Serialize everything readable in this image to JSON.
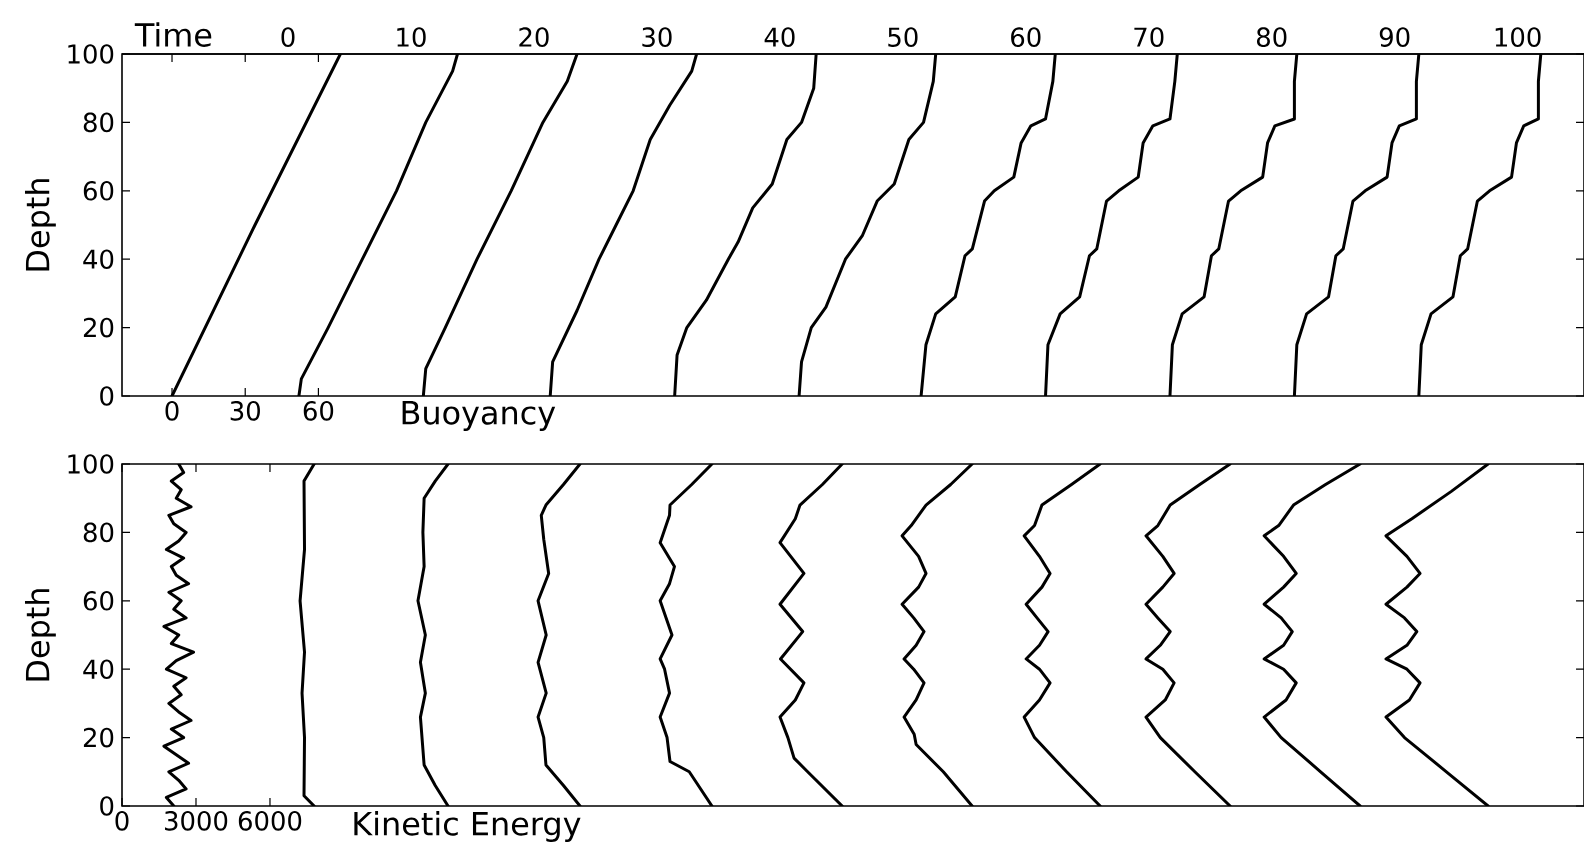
{
  "chart_data": [
    {
      "type": "line",
      "ylabel": "Depth",
      "xlabel": "Buoyancy",
      "x2label": "Time",
      "xlim": [
        -20.5,
        578.7
      ],
      "xticks": [
        0,
        30,
        60
      ],
      "x2lim": [
        -13.5,
        105.4
      ],
      "x2ticks": [
        0,
        10,
        20,
        30,
        40,
        50,
        60,
        70,
        80,
        90,
        100
      ],
      "ylim": [
        0,
        100
      ],
      "yticks": [
        0,
        20,
        40,
        60,
        80,
        100
      ],
      "series": [
        {
          "color": "#000000",
          "x": [
            0,
            34,
            69
          ],
          "values": [
            0,
            50,
            100
          ]
        },
        {
          "color": "#000000",
          "x": [
            52,
            53,
            64,
            78,
            92,
            104,
            115,
            117
          ],
          "values": [
            0,
            5,
            20,
            40,
            60,
            80,
            95,
            100
          ]
        },
        {
          "color": "#000000",
          "x": [
            103,
            104,
            112,
            125,
            139,
            152,
            162,
            166
          ],
          "values": [
            0,
            8,
            20,
            40,
            60,
            80,
            92,
            100
          ]
        },
        {
          "color": "#000000",
          "x": [
            155,
            156,
            166,
            175,
            182,
            189,
            196,
            204,
            213,
            215
          ],
          "values": [
            0,
            10,
            25,
            40,
            50,
            60,
            75,
            85,
            95,
            100
          ]
        },
        {
          "color": "#000000",
          "x": [
            206,
            207,
            211,
            219,
            228,
            232,
            238,
            246,
            252,
            258,
            263,
            264
          ],
          "values": [
            0,
            12,
            20,
            28,
            40,
            45,
            55,
            62,
            75,
            80,
            90,
            100
          ]
        },
        {
          "color": "#000000",
          "x": [
            257,
            258,
            262,
            268,
            276,
            283,
            289,
            296,
            302,
            308,
            312,
            313
          ],
          "values": [
            0,
            10,
            20,
            26,
            40,
            47,
            57,
            62,
            75,
            80,
            92,
            100
          ]
        },
        {
          "color": "#000000",
          "x": [
            307,
            309,
            313,
            321,
            325,
            328,
            333,
            337,
            345,
            348,
            352,
            358,
            361,
            362
          ],
          "values": [
            0,
            15,
            24,
            29,
            41,
            43,
            57,
            60,
            64,
            74,
            79,
            81,
            92,
            100
          ]
        },
        {
          "color": "#000000",
          "x": [
            358,
            359,
            364,
            372,
            376,
            379,
            383,
            388,
            396,
            398,
            402,
            409,
            411,
            412
          ],
          "values": [
            0,
            15,
            24,
            29,
            41,
            43,
            57,
            60,
            64,
            74,
            79,
            81,
            92,
            100
          ]
        },
        {
          "color": "#000000",
          "x": [
            409,
            410,
            414,
            423,
            426,
            429,
            433,
            438,
            447,
            449,
            452,
            460,
            460,
            461
          ],
          "values": [
            0,
            15,
            24,
            29,
            41,
            43,
            57,
            60,
            64,
            74,
            79,
            81,
            92,
            100
          ]
        },
        {
          "color": "#000000",
          "x": [
            460,
            461,
            465,
            474,
            477,
            480,
            484,
            489,
            498,
            500,
            503,
            510,
            510,
            511
          ],
          "values": [
            0,
            15,
            24,
            29,
            41,
            43,
            57,
            60,
            64,
            74,
            79,
            81,
            92,
            100
          ]
        },
        {
          "color": "#000000",
          "x": [
            511,
            512,
            516,
            525,
            528,
            531,
            535,
            540,
            549,
            551,
            554,
            560,
            560,
            561
          ],
          "values": [
            0,
            15,
            24,
            29,
            41,
            43,
            57,
            60,
            64,
            74,
            79,
            81,
            92,
            100
          ]
        }
      ]
    },
    {
      "type": "line",
      "ylabel": "Depth",
      "xlabel": "Kinetic Energy",
      "xlim": [
        0,
        59280
      ],
      "xticks": [
        0,
        3000,
        6000
      ],
      "ylim": [
        0,
        100
      ],
      "yticks": [
        0,
        20,
        40,
        60,
        80,
        100
      ],
      "series": [
        {
          "color": "#000000",
          "x": [
            2100,
            1800,
            2600,
            2300,
            1900,
            2700,
            2200,
            1700,
            2500,
            2000,
            2800,
            2300,
            1900,
            2400,
            2100,
            2600,
            1800,
            2200,
            2900,
            2000,
            2300,
            1700,
            2600,
            2100,
            2400,
            1900,
            2700,
            2200,
            2000,
            2500,
            1800,
            2300,
            2600,
            2100,
            1900,
            2800,
            2200,
            2400,
            2000,
            2500,
            2300
          ],
          "values": [
            0,
            2.5,
            5,
            7.5,
            10,
            12.5,
            15,
            17.5,
            20,
            22.5,
            25,
            27.5,
            30,
            32.5,
            35,
            37.5,
            40,
            42.5,
            45,
            47.5,
            50,
            52.5,
            55,
            57.5,
            60,
            62.5,
            65,
            67.5,
            70,
            72.5,
            75,
            77.5,
            80,
            82.5,
            85,
            87.5,
            90,
            92.5,
            95,
            97.5,
            100
          ]
        },
        {
          "color": "#000000",
          "x": [
            7790,
            7380,
            7400,
            7300,
            7400,
            7220,
            7400,
            7380,
            7790
          ],
          "values": [
            0,
            3,
            20,
            33,
            45,
            60,
            75,
            95,
            100
          ]
        },
        {
          "color": "#000000",
          "x": [
            13220,
            12700,
            12250,
            12100,
            12300,
            12100,
            12300,
            12000,
            12250,
            12200,
            12250,
            12700,
            13220
          ],
          "values": [
            0,
            6,
            12,
            26,
            33,
            42,
            50,
            60,
            70,
            80,
            90,
            95,
            100
          ]
        },
        {
          "color": "#000000",
          "x": [
            18570,
            17900,
            17190,
            17100,
            16870,
            17200,
            16870,
            17200,
            16870,
            17300,
            17100,
            17000,
            17190,
            17900,
            18570
          ],
          "values": [
            0,
            6,
            12,
            20,
            26,
            33,
            42,
            50,
            60,
            68,
            78,
            85,
            88,
            94,
            100
          ]
        },
        {
          "color": "#000000",
          "x": [
            23920,
            23000,
            22220,
            22100,
            21820,
            22200,
            22000,
            21820,
            22300,
            21820,
            22200,
            22400,
            21820,
            22200,
            22220,
            23100,
            23920
          ],
          "values": [
            0,
            10,
            13,
            20,
            26,
            33,
            40,
            43,
            50,
            60,
            65,
            70,
            77,
            85,
            88,
            94,
            100
          ]
        },
        {
          "color": "#000000",
          "x": [
            29200,
            27800,
            27250,
            27000,
            26680,
            27300,
            27650,
            26700,
            27600,
            26680,
            27650,
            26680,
            27300,
            27490,
            28400,
            29200
          ],
          "values": [
            0,
            10,
            14,
            20,
            26,
            31,
            36,
            43,
            51,
            59,
            68,
            77,
            84,
            88,
            94,
            100
          ]
        },
        {
          "color": "#000000",
          "x": [
            34470,
            33300,
            32200,
            32120,
            31710,
            32200,
            32520,
            32100,
            31710,
            32200,
            32520,
            32100,
            31630,
            32300,
            32600,
            32300,
            31630,
            32000,
            32600,
            33600,
            34470
          ],
          "values": [
            0,
            10,
            18,
            21,
            26,
            31,
            36,
            40,
            43,
            47,
            51,
            55,
            59,
            64,
            68,
            73,
            79,
            82,
            88,
            94,
            100
          ]
        },
        {
          "color": "#000000",
          "x": [
            39660,
            38300,
            37000,
            36580,
            37200,
            37630,
            37200,
            36660,
            37200,
            37550,
            37100,
            36660,
            37300,
            37630,
            37200,
            36580,
            37000,
            37300,
            38500,
            39660
          ],
          "values": [
            0,
            10,
            20,
            26,
            31,
            36,
            40,
            43,
            47,
            51,
            55,
            59,
            64,
            68,
            73,
            79,
            82,
            88,
            94,
            100
          ]
        },
        {
          "color": "#000000",
          "x": [
            44930,
            43500,
            42100,
            41520,
            42300,
            42660,
            42200,
            41520,
            42100,
            42500,
            42000,
            41520,
            42200,
            42660,
            42200,
            41520,
            42000,
            42500,
            43700,
            44930
          ],
          "values": [
            0,
            10,
            20,
            26,
            31,
            36,
            40,
            43,
            47,
            51,
            55,
            59,
            64,
            68,
            73,
            79,
            82,
            88,
            94,
            100
          ]
        },
        {
          "color": "#000000",
          "x": [
            50200,
            48600,
            47000,
            46310,
            47200,
            47610,
            47100,
            46310,
            47100,
            47450,
            47000,
            46310,
            47100,
            47610,
            47100,
            46310,
            46900,
            47500,
            48800,
            50200
          ],
          "values": [
            0,
            10,
            20,
            26,
            31,
            36,
            40,
            43,
            47,
            51,
            55,
            59,
            64,
            68,
            73,
            79,
            82,
            88,
            94,
            100
          ]
        },
        {
          "color": "#000000",
          "x": [
            55390,
            53700,
            52000,
            51250,
            52200,
            52630,
            52100,
            51250,
            52100,
            52500,
            52000,
            51250,
            52100,
            52630,
            52100,
            51250,
            52300,
            53900,
            55390
          ],
          "values": [
            0,
            10,
            20,
            26,
            31,
            36,
            40,
            43,
            47,
            51,
            55,
            59,
            64,
            68,
            73,
            79,
            84,
            92,
            100
          ]
        }
      ]
    }
  ]
}
